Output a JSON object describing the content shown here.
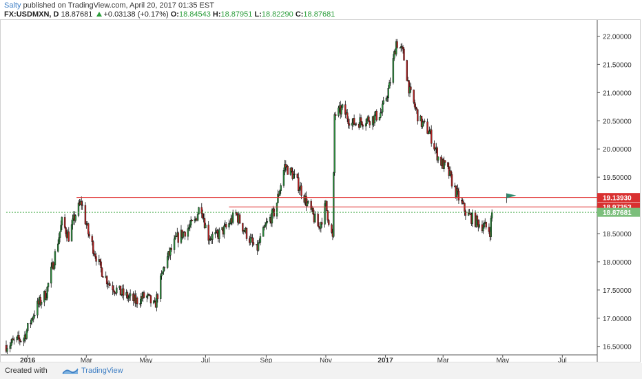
{
  "header": {
    "author": "Salty",
    "published": "published on TradingView.com, April 20, 2017 01:35 EST",
    "symbol": "FX:USDMXN, D",
    "last": "18.87681",
    "change": "+0.03138 (+0.17%)",
    "o_label": "O:",
    "o_value": "18.84543",
    "h_label": "H:",
    "h_value": "18.87951",
    "l_label": "L:",
    "l_value": "18.82290",
    "c_label": "C:",
    "c_value": "18.87681"
  },
  "footer": {
    "created_with": "Created with",
    "brand": "TradingView"
  },
  "colors": {
    "up": "#2e8b3e",
    "down": "#b22222",
    "candle_outline": "#111111",
    "level_line": "#e03030",
    "current_line": "#4caf50",
    "grid": "#e5e5e5"
  },
  "chart_data": {
    "type": "candlestick",
    "symbol": "FX:USDMXN",
    "timeframe": "D",
    "y_axis": {
      "range": [
        16.35,
        22.25
      ],
      "ticks": [
        "16.50000",
        "17.00000",
        "17.50000",
        "18.00000",
        "18.50000",
        "19.00000",
        "19.50000",
        "20.00000",
        "20.50000",
        "21.00000",
        "21.50000",
        "22.00000"
      ]
    },
    "x_axis": {
      "range": [
        "2015-12-10",
        "2017-08-05"
      ],
      "ticks": [
        {
          "label": "2016",
          "date": "2016-01-01"
        },
        {
          "label": "Mar",
          "date": "2016-03-01"
        },
        {
          "label": "May",
          "date": "2016-05-01"
        },
        {
          "label": "Jul",
          "date": "2016-07-01"
        },
        {
          "label": "Sep",
          "date": "2016-09-01"
        },
        {
          "label": "Nov",
          "date": "2016-11-01"
        },
        {
          "label": "2017",
          "date": "2017-01-01"
        },
        {
          "label": "Mar",
          "date": "2017-03-01"
        },
        {
          "label": "May",
          "date": "2017-05-01"
        },
        {
          "label": "Jul",
          "date": "2017-07-01"
        }
      ]
    },
    "close_path": [
      [
        "2015-12-10",
        16.52
      ],
      [
        "2015-12-28",
        16.65
      ],
      [
        "2016-01-10",
        17.2
      ],
      [
        "2016-01-20",
        17.45
      ],
      [
        "2016-01-28",
        18.05
      ],
      [
        "2016-02-05",
        18.7
      ],
      [
        "2016-02-12",
        18.45
      ],
      [
        "2016-02-20",
        18.9
      ],
      [
        "2016-02-25",
        19.05
      ],
      [
        "2016-03-03",
        18.5
      ],
      [
        "2016-03-15",
        17.9
      ],
      [
        "2016-03-25",
        17.6
      ],
      [
        "2016-04-05",
        17.45
      ],
      [
        "2016-04-20",
        17.3
      ],
      [
        "2016-05-01",
        17.4
      ],
      [
        "2016-05-10",
        17.2
      ],
      [
        "2016-05-20",
        17.95
      ],
      [
        "2016-06-01",
        18.4
      ],
      [
        "2016-06-10",
        18.55
      ],
      [
        "2016-06-20",
        18.7
      ],
      [
        "2016-06-26",
        19.05
      ],
      [
        "2016-07-03",
        18.45
      ],
      [
        "2016-07-12",
        18.45
      ],
      [
        "2016-07-22",
        18.6
      ],
      [
        "2016-08-01",
        18.85
      ],
      [
        "2016-08-10",
        18.55
      ],
      [
        "2016-08-22",
        18.2
      ],
      [
        "2016-09-01",
        18.65
      ],
      [
        "2016-09-10",
        18.9
      ],
      [
        "2016-09-20",
        19.7
      ],
      [
        "2016-09-28",
        19.55
      ],
      [
        "2016-10-06",
        19.3
      ],
      [
        "2016-10-15",
        18.95
      ],
      [
        "2016-10-25",
        18.6
      ],
      [
        "2016-11-01",
        19.0
      ],
      [
        "2016-11-08",
        18.4
      ],
      [
        "2016-11-10",
        20.6
      ],
      [
        "2016-11-18",
        20.7
      ],
      [
        "2016-11-28",
        20.45
      ],
      [
        "2016-12-08",
        20.5
      ],
      [
        "2016-12-20",
        20.55
      ],
      [
        "2016-12-28",
        20.65
      ],
      [
        "2017-01-05",
        21.1
      ],
      [
        "2017-01-12",
        21.9
      ],
      [
        "2017-01-19",
        21.7
      ],
      [
        "2017-01-26",
        21.0
      ],
      [
        "2017-02-05",
        20.5
      ],
      [
        "2017-02-15",
        20.3
      ],
      [
        "2017-02-25",
        19.8
      ],
      [
        "2017-03-05",
        19.65
      ],
      [
        "2017-03-15",
        19.2
      ],
      [
        "2017-03-25",
        18.85
      ],
      [
        "2017-04-05",
        18.7
      ],
      [
        "2017-04-15",
        18.6
      ],
      [
        "2017-04-18",
        18.55
      ],
      [
        "2017-04-20",
        18.88
      ]
    ],
    "levels": [
      {
        "label": "19.13930",
        "value": 19.1393,
        "color": "red",
        "from": "2016-02-20"
      },
      {
        "label": "18.97353",
        "value": 18.97353,
        "color": "red",
        "from": "2016-07-25"
      },
      {
        "label": "18.87681",
        "value": 18.87681,
        "color": "green",
        "from": "2015-12-10"
      }
    ],
    "flag": {
      "date": "2017-05-05",
      "value": 19.14
    },
    "grid": false,
    "legend": "none"
  }
}
